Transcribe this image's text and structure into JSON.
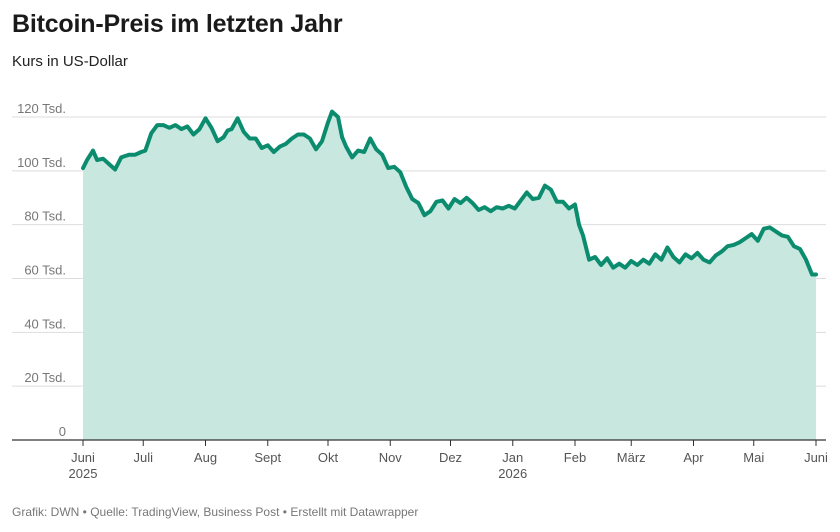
{
  "title": "Bitcoin-Preis im letzten Jahr",
  "subtitle": "Kurs in US-Dollar",
  "footer": {
    "grafik": "Grafik: DWN",
    "sep1": " • ",
    "quelle": "Quelle: TradingView, Business Post",
    "sep2": " • ",
    "erstellt": "Erstellt mit Datawrapper"
  },
  "colors": {
    "line": "#0c8c6e",
    "area": "#c7e7df",
    "grid": "#dddddd",
    "axis": "#333333",
    "tick_label": "#777777"
  },
  "chart_data": {
    "type": "area",
    "title": "Bitcoin-Preis im letzten Jahr",
    "subtitle": "Kurs in US-Dollar",
    "xlabel": "",
    "ylabel": "",
    "ylim": [
      0,
      120000
    ],
    "y_ticks": [
      {
        "value": 0,
        "label": "0"
      },
      {
        "value": 20000,
        "label": "20 Tsd."
      },
      {
        "value": 40000,
        "label": "40 Tsd."
      },
      {
        "value": 60000,
        "label": "60 Tsd."
      },
      {
        "value": 80000,
        "label": "80 Tsd."
      },
      {
        "value": 100000,
        "label": "100 Tsd."
      },
      {
        "value": 120000,
        "label": "120 Tsd."
      }
    ],
    "x_range": [
      "2025-06-01",
      "2026-06-01"
    ],
    "x_ticks": [
      {
        "date": "2025-06-01",
        "label": "Juni",
        "year": "2025"
      },
      {
        "date": "2025-07-01",
        "label": "Juli"
      },
      {
        "date": "2025-08-01",
        "label": "Aug"
      },
      {
        "date": "2025-09-01",
        "label": "Sept"
      },
      {
        "date": "2025-10-01",
        "label": "Okt"
      },
      {
        "date": "2025-11-01",
        "label": "Nov"
      },
      {
        "date": "2025-12-01",
        "label": "Dez"
      },
      {
        "date": "2026-01-01",
        "label": "Jan",
        "year": "2026"
      },
      {
        "date": "2026-02-01",
        "label": "Feb"
      },
      {
        "date": "2026-03-01",
        "label": "März"
      },
      {
        "date": "2026-04-01",
        "label": "Apr"
      },
      {
        "date": "2026-05-01",
        "label": "Mai"
      },
      {
        "date": "2026-06-01",
        "label": "Juni"
      }
    ],
    "grid": true,
    "legend": "none",
    "series": [
      {
        "x": [
          "2025-06-01",
          "2025-06-03",
          "2025-06-06",
          "2025-06-08",
          "2025-06-11",
          "2025-06-14",
          "2025-06-17",
          "2025-06-20",
          "2025-06-22",
          "2025-06-24",
          "2025-06-27",
          "2025-06-30",
          "2025-07-02",
          "2025-07-05",
          "2025-07-08",
          "2025-07-11",
          "2025-07-14",
          "2025-07-17",
          "2025-07-20",
          "2025-07-23",
          "2025-07-26",
          "2025-07-29",
          "2025-08-01",
          "2025-08-04",
          "2025-08-07",
          "2025-08-10",
          "2025-08-12",
          "2025-08-14",
          "2025-08-17",
          "2025-08-20",
          "2025-08-23",
          "2025-08-26",
          "2025-08-29",
          "2025-09-01",
          "2025-09-04",
          "2025-09-07",
          "2025-09-10",
          "2025-09-13",
          "2025-09-16",
          "2025-09-19",
          "2025-09-22",
          "2025-09-25",
          "2025-09-28",
          "2025-10-01",
          "2025-10-03",
          "2025-10-06",
          "2025-10-08",
          "2025-10-10",
          "2025-10-13",
          "2025-10-16",
          "2025-10-19",
          "2025-10-22",
          "2025-10-25",
          "2025-10-28",
          "2025-10-31",
          "2025-11-03",
          "2025-11-06",
          "2025-11-09",
          "2025-11-12",
          "2025-11-15",
          "2025-11-18",
          "2025-11-21",
          "2025-11-24",
          "2025-11-27",
          "2025-11-30",
          "2025-12-03",
          "2025-12-06",
          "2025-12-09",
          "2025-12-12",
          "2025-12-15",
          "2025-12-18",
          "2025-12-21",
          "2025-12-24",
          "2025-12-27",
          "2025-12-30",
          "2026-01-02",
          "2026-01-05",
          "2026-01-08",
          "2026-01-11",
          "2026-01-14",
          "2026-01-17",
          "2026-01-20",
          "2026-01-23",
          "2026-01-26",
          "2026-01-29",
          "2026-02-01",
          "2026-02-03",
          "2026-02-05",
          "2026-02-08",
          "2026-02-11",
          "2026-02-14",
          "2026-02-17",
          "2026-02-20",
          "2026-02-23",
          "2026-02-26",
          "2026-03-01",
          "2026-03-04",
          "2026-03-07",
          "2026-03-10",
          "2026-03-13",
          "2026-03-16",
          "2026-03-19",
          "2026-03-22",
          "2026-03-25",
          "2026-03-28",
          "2026-03-31",
          "2026-04-03",
          "2026-04-06",
          "2026-04-09",
          "2026-04-12",
          "2026-04-15",
          "2026-04-18",
          "2026-04-21",
          "2026-04-24",
          "2026-04-27",
          "2026-04-30",
          "2026-05-03",
          "2026-05-06",
          "2026-05-09",
          "2026-05-12",
          "2026-05-15",
          "2026-05-18",
          "2026-05-21",
          "2026-05-24",
          "2026-05-27",
          "2026-05-30",
          "2026-06-01"
        ],
        "values": [
          101000,
          104000,
          107500,
          104000,
          104500,
          102500,
          100500,
          105000,
          105500,
          106000,
          106000,
          107000,
          107500,
          114000,
          117000,
          117000,
          116000,
          117000,
          115500,
          116500,
          113500,
          115500,
          119500,
          116000,
          111000,
          112500,
          115000,
          115500,
          119500,
          114500,
          112000,
          112000,
          108500,
          109500,
          107000,
          109000,
          110000,
          112000,
          113500,
          113500,
          112000,
          108000,
          111000,
          118000,
          122000,
          120000,
          112500,
          109000,
          105000,
          107500,
          107000,
          112000,
          108000,
          106000,
          101000,
          101500,
          99500,
          94000,
          89500,
          88000,
          83500,
          85000,
          88500,
          89000,
          86000,
          89500,
          88000,
          90000,
          88000,
          85500,
          86500,
          85000,
          86500,
          86000,
          87000,
          86000,
          89000,
          92000,
          89500,
          90000,
          94500,
          93000,
          88500,
          88500,
          86000,
          87500,
          80000,
          76000,
          67000,
          68000,
          65000,
          67500,
          64000,
          65500,
          64000,
          66500,
          65000,
          67000,
          65500,
          69000,
          67000,
          71500,
          68000,
          66000,
          69000,
          67500,
          69500,
          67000,
          66000,
          68500,
          70000,
          72000,
          72500,
          73500,
          75000,
          76500,
          74000,
          78500,
          79000,
          77500,
          76000,
          75500,
          72000,
          71000,
          67000,
          61500,
          61500
        ]
      }
    ]
  }
}
